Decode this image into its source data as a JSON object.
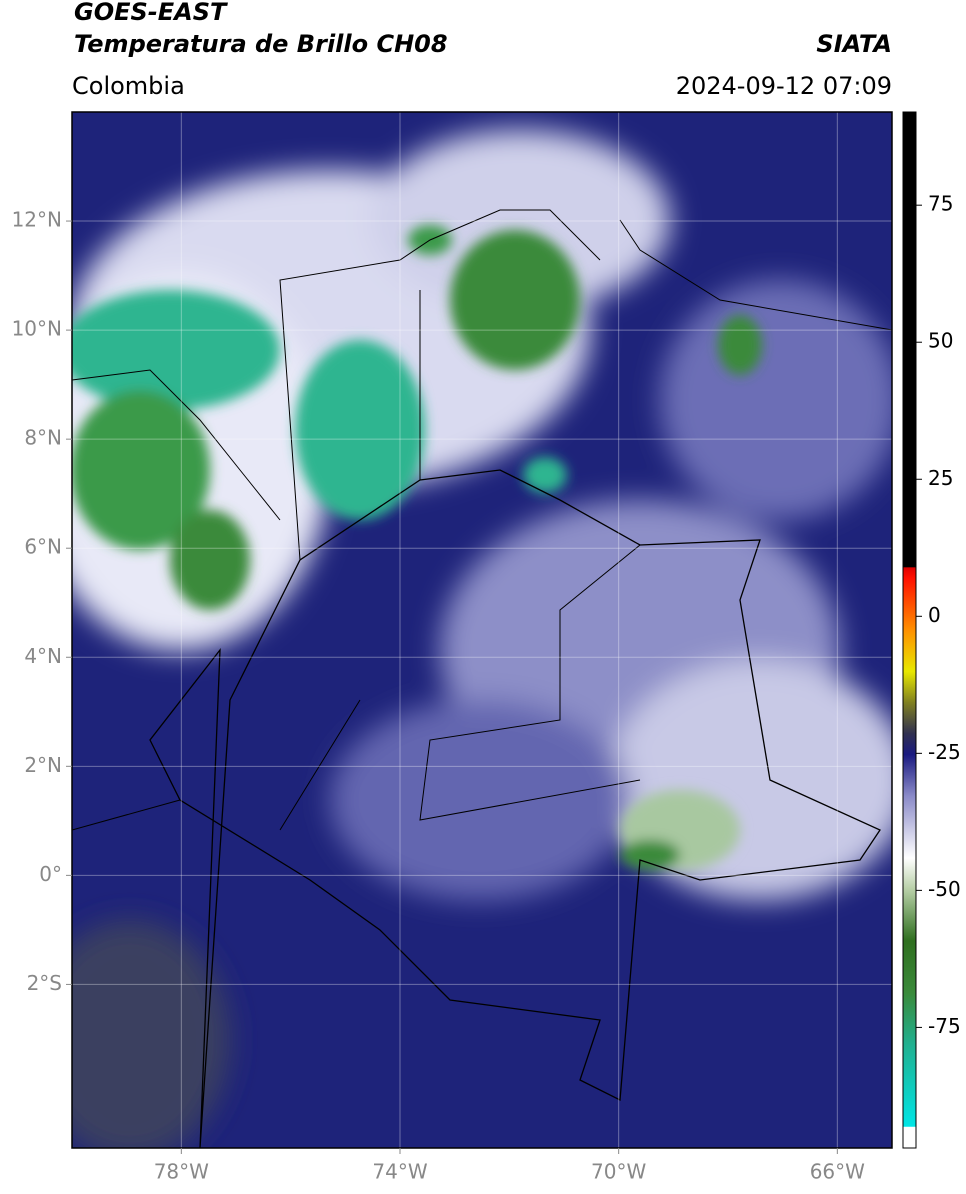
{
  "header": {
    "title": "GOES-EAST",
    "subtitle": "Temperatura de Brillo CH08",
    "source": "SIATA",
    "region": "Colombia",
    "timestamp": "2024-09-12 07:09"
  },
  "map": {
    "xlim": [
      -80,
      -65
    ],
    "ylim": [
      -5,
      14
    ],
    "xticks": [
      {
        "value": -78,
        "label": "78°W"
      },
      {
        "value": -74,
        "label": "74°W"
      },
      {
        "value": -70,
        "label": "70°W"
      },
      {
        "value": -66,
        "label": "66°W"
      }
    ],
    "yticks": [
      {
        "value": 12,
        "label": "12°N"
      },
      {
        "value": 10,
        "label": "10°N"
      },
      {
        "value": 8,
        "label": "8°N"
      },
      {
        "value": 6,
        "label": "6°N"
      },
      {
        "value": 4,
        "label": "4°N"
      },
      {
        "value": 2,
        "label": "2°N"
      },
      {
        "value": 0,
        "label": "0°"
      },
      {
        "value": -2,
        "label": "2°S"
      }
    ]
  },
  "colorbar": {
    "lim": [
      -97,
      92
    ],
    "ticks": [
      75,
      50,
      25,
      0,
      -25,
      -50,
      -75
    ]
  }
}
